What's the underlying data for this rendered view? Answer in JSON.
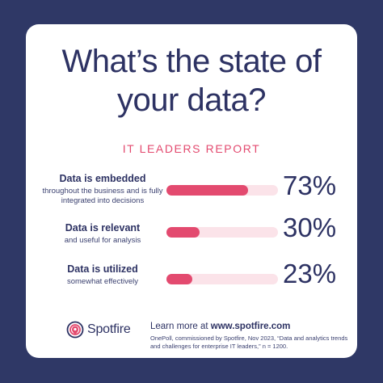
{
  "title": [
    "What’s the state of",
    "your data?"
  ],
  "subtitle": "IT LEADERS REPORT",
  "colors": {
    "background": "#2f3866",
    "card": "#ffffff",
    "accent": "#e34a6f",
    "track": "#fbe3e9",
    "text": "#2d3263"
  },
  "chart_data": {
    "type": "bar",
    "orientation": "horizontal",
    "title": "What’s the state of your data?",
    "subtitle": "IT LEADERS REPORT",
    "categories": [
      "Data is embedded",
      "Data is relevant",
      "Data is utilized"
    ],
    "descriptions": [
      "throughout the business and is fully integrated into decisions",
      "and useful for analysis",
      "somewhat effectively"
    ],
    "values": [
      73,
      30,
      23
    ],
    "value_labels": [
      "73%",
      "30%",
      "23%"
    ],
    "unit": "%",
    "xlim": [
      0,
      100
    ],
    "grid": false
  },
  "footer": {
    "logo_text": "Spotfire",
    "logo_icon": "spotfire-logo-icon",
    "learn_prefix": "Learn more at ",
    "learn_url": "www.spotfire.com",
    "source": "OnePoll, commissioned by Spotfire, Nov 2023, “Data and analytics trends and challenges for enterprise IT leaders,” n = 1200."
  }
}
